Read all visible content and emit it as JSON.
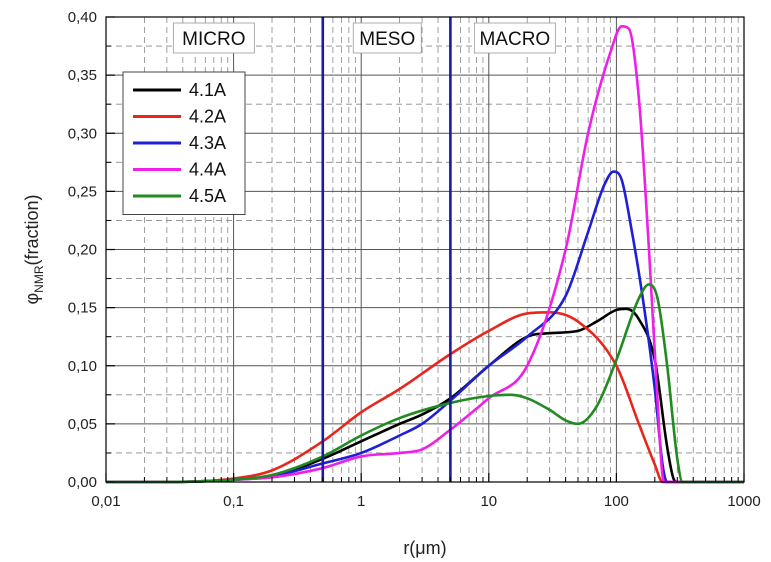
{
  "chart_data": {
    "type": "line",
    "xlabel": "r(μm)",
    "ylabel_main": "φ",
    "ylabel_sub": "NMR",
    "ylabel_rest": "(fraction)",
    "xscale": "log",
    "xlim": [
      0.01,
      1000
    ],
    "ylim": [
      0,
      0.4
    ],
    "x_ticks": [
      0.01,
      0.1,
      1,
      10,
      100,
      1000
    ],
    "x_tick_labels": [
      "0,01",
      "0,1",
      "1",
      "10",
      "100",
      "1000"
    ],
    "y_ticks": [
      0,
      0.05,
      0.1,
      0.15,
      0.2,
      0.25,
      0.3,
      0.35,
      0.4
    ],
    "y_tick_labels": [
      "0,00",
      "0,05",
      "0,10",
      "0,15",
      "0,20",
      "0,25",
      "0,30",
      "0,35",
      "0,40"
    ],
    "grid": true,
    "legend_position": "top-left",
    "vertical_lines": [
      {
        "x": 0.5,
        "color": "#1a1aa8"
      },
      {
        "x": 5,
        "color": "#1a1aa8"
      }
    ],
    "regions": [
      {
        "label": "MICRO",
        "x_center": 0.07
      },
      {
        "label": "MESO",
        "x_center": 1.6
      },
      {
        "label": "MACRO",
        "x_center": 16
      }
    ],
    "series": [
      {
        "name": "4.1A",
        "color": "#000000",
        "points": [
          [
            0.01,
            0
          ],
          [
            0.03,
            0
          ],
          [
            0.1,
            0.002
          ],
          [
            0.2,
            0.005
          ],
          [
            0.5,
            0.02
          ],
          [
            1,
            0.035
          ],
          [
            2,
            0.05
          ],
          [
            3,
            0.058
          ],
          [
            5,
            0.072
          ],
          [
            10,
            0.1
          ],
          [
            20,
            0.125
          ],
          [
            30,
            0.128
          ],
          [
            50,
            0.13
          ],
          [
            70,
            0.138
          ],
          [
            100,
            0.148
          ],
          [
            120,
            0.149
          ],
          [
            150,
            0.14
          ],
          [
            200,
            0.105
          ],
          [
            250,
            0.03
          ],
          [
            280,
            0.003
          ],
          [
            300,
            0
          ],
          [
            1000,
            0
          ]
        ]
      },
      {
        "name": "4.2A",
        "color": "#e8261c",
        "points": [
          [
            0.01,
            0
          ],
          [
            0.03,
            0
          ],
          [
            0.1,
            0.003
          ],
          [
            0.2,
            0.01
          ],
          [
            0.5,
            0.035
          ],
          [
            1,
            0.06
          ],
          [
            2,
            0.08
          ],
          [
            5,
            0.11
          ],
          [
            10,
            0.13
          ],
          [
            20,
            0.145
          ],
          [
            30,
            0.146
          ],
          [
            50,
            0.138
          ],
          [
            100,
            0.1
          ],
          [
            150,
            0.05
          ],
          [
            200,
            0.015
          ],
          [
            230,
            0
          ],
          [
            1000,
            0
          ]
        ]
      },
      {
        "name": "4.3A",
        "color": "#1f1fd6",
        "points": [
          [
            0.01,
            0
          ],
          [
            0.03,
            0
          ],
          [
            0.1,
            0.002
          ],
          [
            0.2,
            0.005
          ],
          [
            0.5,
            0.016
          ],
          [
            1,
            0.025
          ],
          [
            2,
            0.04
          ],
          [
            3,
            0.05
          ],
          [
            5,
            0.07
          ],
          [
            10,
            0.1
          ],
          [
            20,
            0.125
          ],
          [
            40,
            0.16
          ],
          [
            60,
            0.215
          ],
          [
            80,
            0.255
          ],
          [
            95,
            0.267
          ],
          [
            110,
            0.26
          ],
          [
            130,
            0.22
          ],
          [
            160,
            0.16
          ],
          [
            200,
            0.08
          ],
          [
            230,
            0.015
          ],
          [
            250,
            0
          ],
          [
            1000,
            0
          ]
        ]
      },
      {
        "name": "4.4A",
        "color": "#ee1fe8",
        "points": [
          [
            0.01,
            0
          ],
          [
            0.03,
            0
          ],
          [
            0.1,
            0.002
          ],
          [
            0.2,
            0.004
          ],
          [
            0.5,
            0.012
          ],
          [
            1,
            0.022
          ],
          [
            2,
            0.025
          ],
          [
            3,
            0.028
          ],
          [
            5,
            0.045
          ],
          [
            10,
            0.072
          ],
          [
            20,
            0.1
          ],
          [
            40,
            0.2
          ],
          [
            60,
            0.3
          ],
          [
            90,
            0.37
          ],
          [
            110,
            0.392
          ],
          [
            125,
            0.39
          ],
          [
            150,
            0.33
          ],
          [
            180,
            0.2
          ],
          [
            210,
            0.07
          ],
          [
            230,
            0.005
          ],
          [
            240,
            0
          ],
          [
            1000,
            0
          ]
        ]
      },
      {
        "name": "4.5A",
        "color": "#218a21",
        "points": [
          [
            0.01,
            0
          ],
          [
            0.03,
            0
          ],
          [
            0.1,
            0.002
          ],
          [
            0.2,
            0.006
          ],
          [
            0.5,
            0.022
          ],
          [
            1,
            0.04
          ],
          [
            2,
            0.055
          ],
          [
            5,
            0.068
          ],
          [
            10,
            0.074
          ],
          [
            15,
            0.075
          ],
          [
            20,
            0.072
          ],
          [
            30,
            0.062
          ],
          [
            40,
            0.053
          ],
          [
            50,
            0.05
          ],
          [
            70,
            0.065
          ],
          [
            100,
            0.105
          ],
          [
            150,
            0.158
          ],
          [
            180,
            0.17
          ],
          [
            210,
            0.158
          ],
          [
            250,
            0.1
          ],
          [
            300,
            0.02
          ],
          [
            330,
            0
          ],
          [
            1000,
            0
          ]
        ]
      }
    ]
  }
}
